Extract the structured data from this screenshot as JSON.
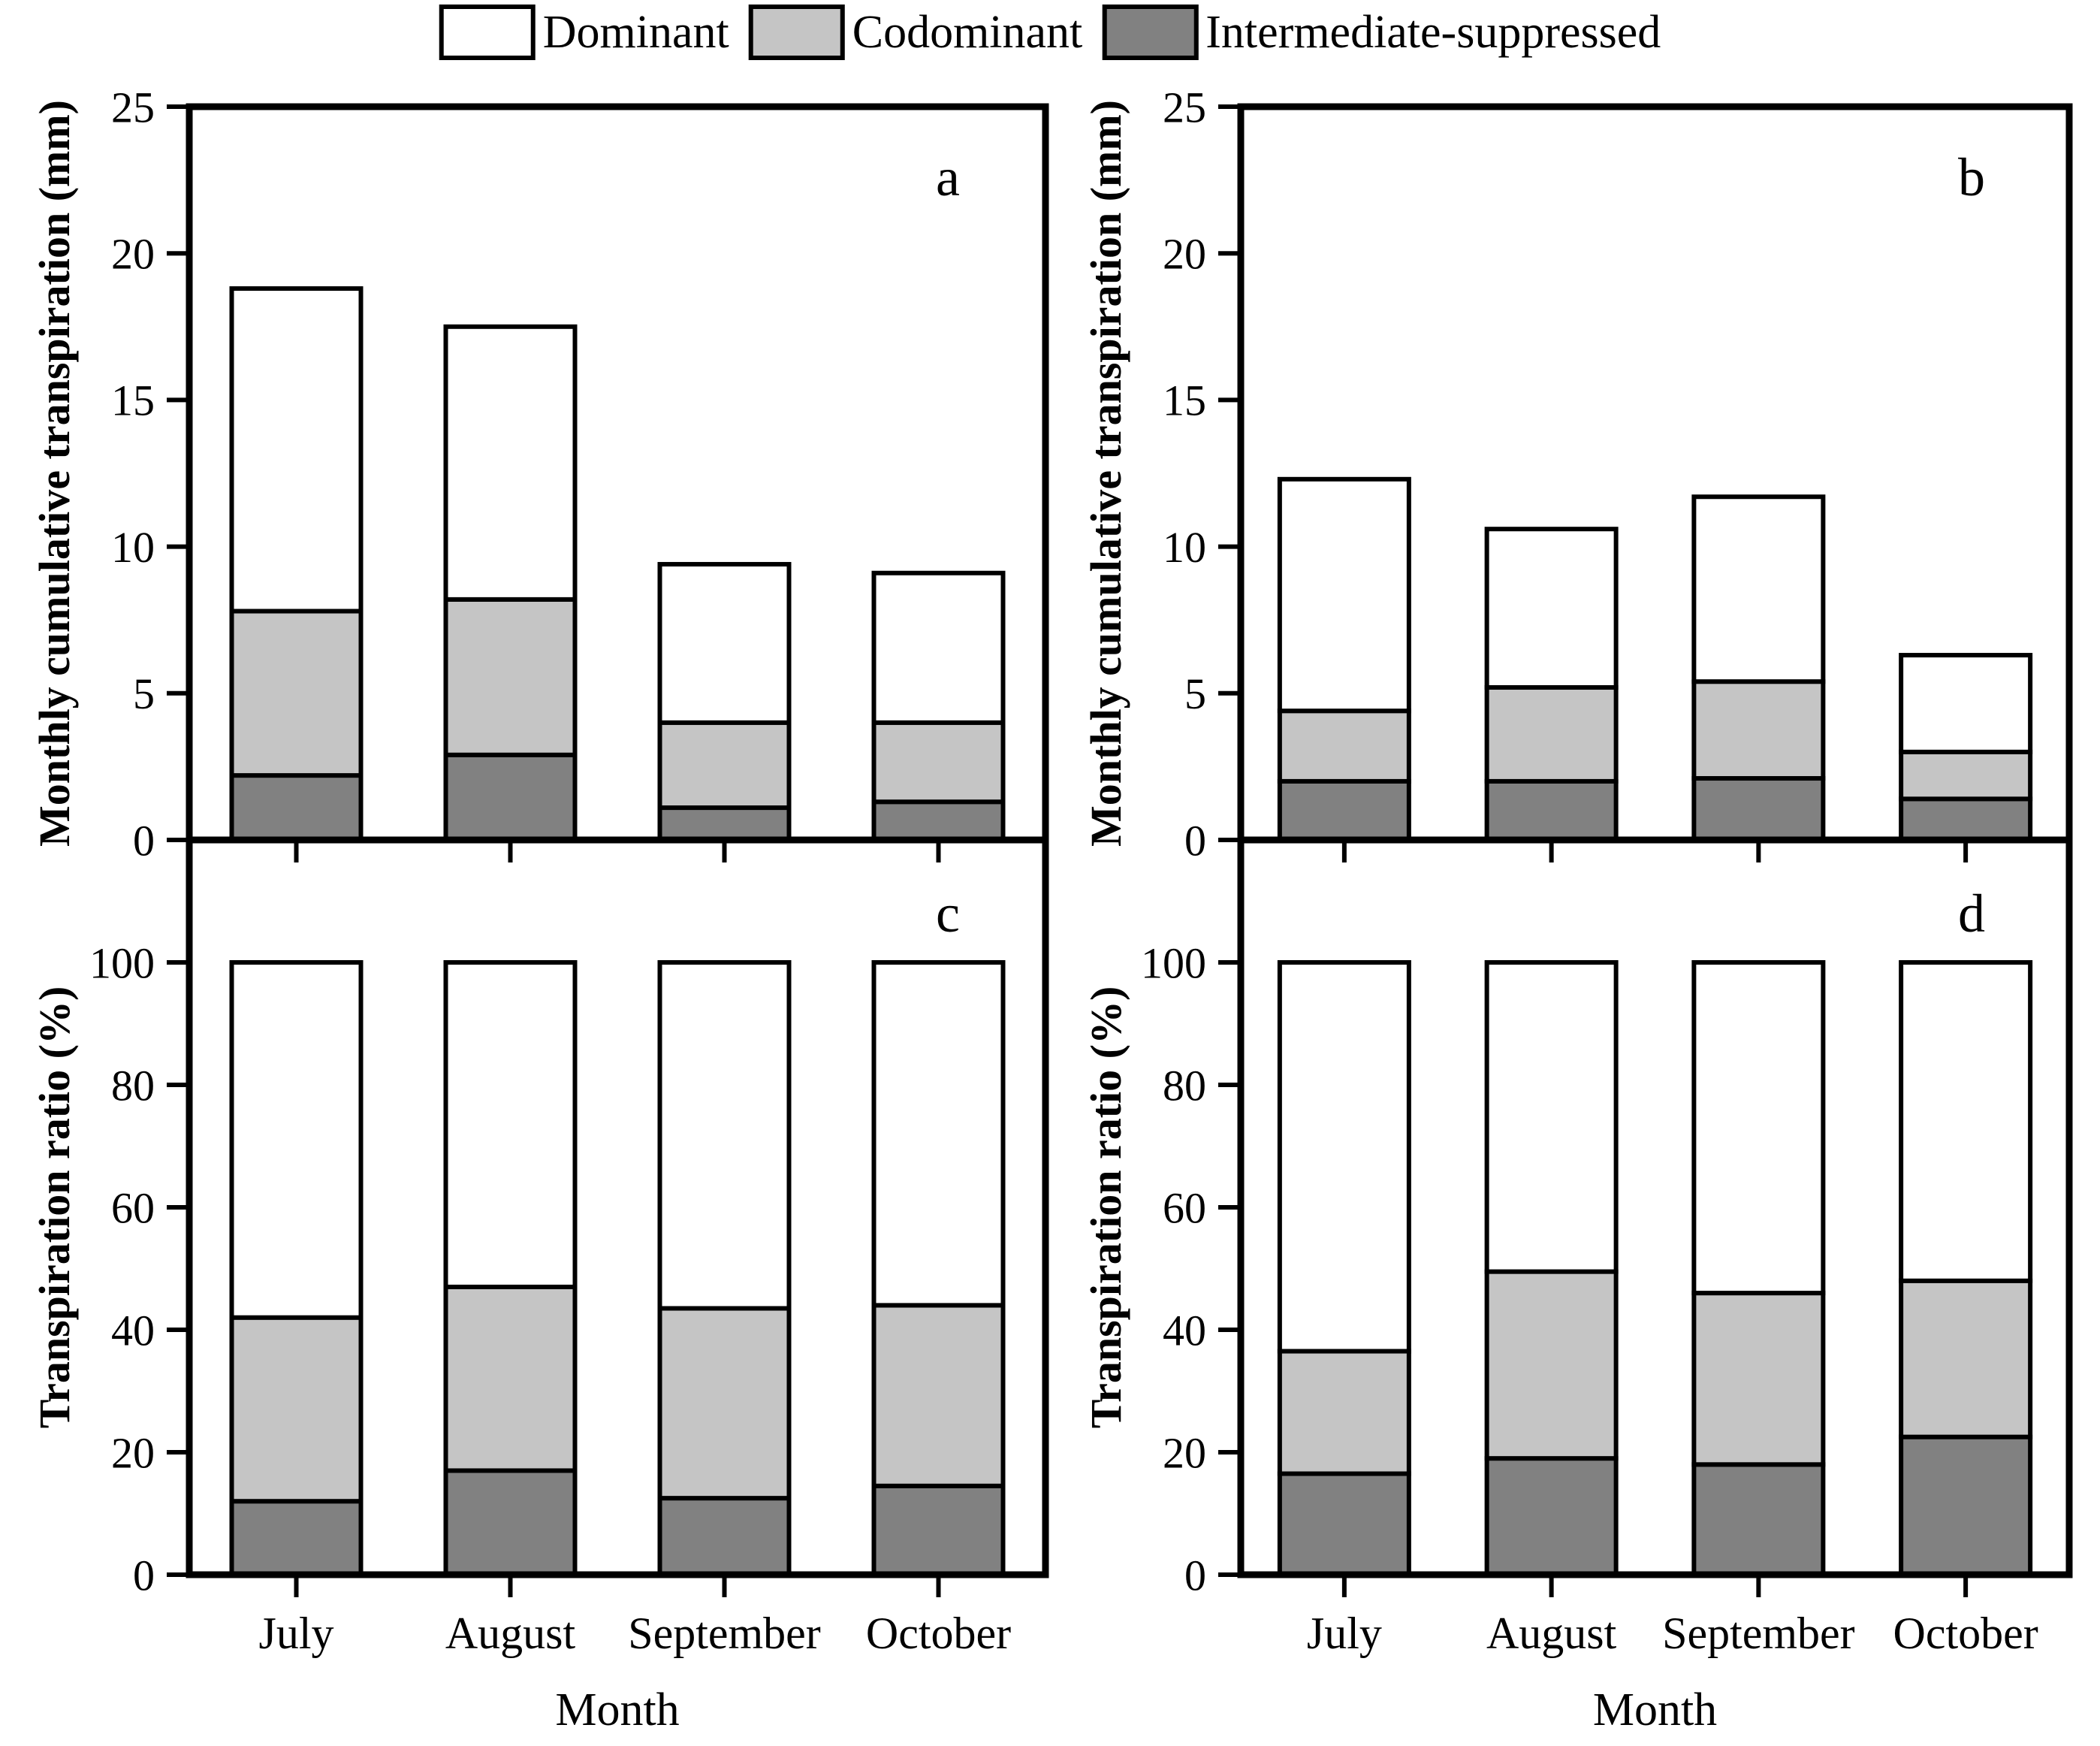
{
  "figure": {
    "background": "#ffffff",
    "axis_color": "#000000",
    "xlabel": "Month"
  },
  "legend": {
    "items": [
      {
        "name": "dominant",
        "label": "Dominant",
        "color": "#ffffff"
      },
      {
        "name": "codominant",
        "label": "Codominant",
        "color": "#c5c5c5"
      },
      {
        "name": "intermediate-suppressed",
        "label": "Intermediate-suppressed",
        "color": "#818181"
      }
    ]
  },
  "chart_data": [
    {
      "type": "bar",
      "stacked": true,
      "panel_letter": "a",
      "title": "",
      "xlabel": "Month",
      "ylabel": "Monthly cumulative transpiration (mm)",
      "ylim": [
        0,
        25
      ],
      "yticks": [
        0,
        5,
        10,
        15,
        20,
        25
      ],
      "grid": false,
      "categories": [
        "July",
        "August",
        "September",
        "October"
      ],
      "series": [
        {
          "name": "Intermediate-suppressed",
          "color": "#818181",
          "values": [
            2.2,
            2.9,
            1.1,
            1.3
          ]
        },
        {
          "name": "Codominant",
          "color": "#c5c5c5",
          "values": [
            5.6,
            5.3,
            2.9,
            2.7
          ]
        },
        {
          "name": "Dominant",
          "color": "#ffffff",
          "values": [
            11.0,
            9.3,
            5.4,
            5.1
          ]
        }
      ],
      "totals": [
        18.8,
        17.5,
        9.4,
        9.1
      ]
    },
    {
      "type": "bar",
      "stacked": true,
      "panel_letter": "b",
      "title": "",
      "xlabel": "Month",
      "ylabel": "Monthly cumulative transpiration (mm)",
      "ylim": [
        0,
        25
      ],
      "yticks": [
        0,
        5,
        10,
        15,
        20,
        25
      ],
      "grid": false,
      "categories": [
        "July",
        "August",
        "September",
        "October"
      ],
      "series": [
        {
          "name": "Intermediate-suppressed",
          "color": "#818181",
          "values": [
            2.0,
            2.0,
            2.1,
            1.4
          ]
        },
        {
          "name": "Codominant",
          "color": "#c5c5c5",
          "values": [
            2.4,
            3.2,
            3.3,
            1.6
          ]
        },
        {
          "name": "Dominant",
          "color": "#ffffff",
          "values": [
            7.9,
            5.4,
            6.3,
            3.3
          ]
        }
      ],
      "totals": [
        12.3,
        10.6,
        11.7,
        6.3
      ]
    },
    {
      "type": "bar",
      "stacked": true,
      "panel_letter": "c",
      "title": "",
      "xlabel": "Month",
      "ylabel": "Transpiration ratio (%)",
      "ylim": [
        0,
        100
      ],
      "yticks": [
        0,
        20,
        40,
        60,
        80,
        100
      ],
      "grid": false,
      "categories": [
        "July",
        "August",
        "September",
        "October"
      ],
      "series": [
        {
          "name": "Intermediate-suppressed",
          "color": "#818181",
          "values": [
            12.0,
            17.0,
            12.5,
            14.5
          ]
        },
        {
          "name": "Codominant",
          "color": "#c5c5c5",
          "values": [
            30.0,
            30.0,
            31.0,
            29.5
          ]
        },
        {
          "name": "Dominant",
          "color": "#ffffff",
          "values": [
            58.0,
            53.0,
            56.5,
            56.0
          ]
        }
      ],
      "totals": [
        100,
        100,
        100,
        100
      ]
    },
    {
      "type": "bar",
      "stacked": true,
      "panel_letter": "d",
      "title": "",
      "xlabel": "Month",
      "ylabel": "Transpiration ratio (%)",
      "ylim": [
        0,
        100
      ],
      "yticks": [
        0,
        20,
        40,
        60,
        80,
        100
      ],
      "grid": false,
      "categories": [
        "July",
        "August",
        "September",
        "October"
      ],
      "series": [
        {
          "name": "Intermediate-suppressed",
          "color": "#818181",
          "values": [
            16.5,
            19.0,
            18.0,
            22.5
          ]
        },
        {
          "name": "Codominant",
          "color": "#c5c5c5",
          "values": [
            20.0,
            30.5,
            28.0,
            25.5
          ]
        },
        {
          "name": "Dominant",
          "color": "#ffffff",
          "values": [
            63.5,
            50.5,
            54.0,
            52.0
          ]
        }
      ],
      "totals": [
        100,
        100,
        100,
        100
      ]
    }
  ]
}
